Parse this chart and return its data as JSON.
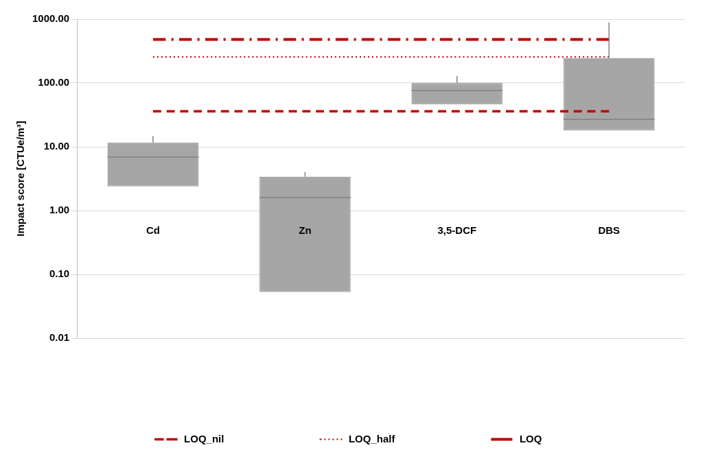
{
  "chart_data": {
    "type": "box",
    "categories": [
      "Cd",
      "Zn",
      "3,5-DCF",
      "DBS"
    ],
    "ylabel": "Impact score [CTUe/m³]",
    "log": "y",
    "ylim": [
      0.01,
      1000
    ],
    "yticks": [
      {
        "value": 0.01,
        "label": "0.01"
      },
      {
        "value": 0.1,
        "label": "0.10"
      },
      {
        "value": 1,
        "label": "1.00"
      },
      {
        "value": 10,
        "label": "10.00"
      },
      {
        "value": 100,
        "label": "100.00"
      },
      {
        "value": 1000,
        "label": "1000.00"
      }
    ],
    "grid": "y",
    "legend": "bottom",
    "series": [
      {
        "color": "#a6a6a6",
        "boxes": [
          {
            "low": 2.4,
            "q1": 2.4,
            "median": 6.9,
            "q3": 11.7,
            "high": 14.8
          },
          {
            "low": 0.053,
            "q1": 0.053,
            "median": 1.6,
            "q3": 3.4,
            "high": 4
          },
          {
            "low": 46,
            "q1": 46,
            "median": 76,
            "q3": 100,
            "high": 129
          },
          {
            "low": 18,
            "q1": 18,
            "median": 27,
            "q3": 247,
            "high": 890
          }
        ]
      },
      {
        "name": "LOQ_nil",
        "type": "line",
        "color": "#c00000",
        "line_style": "dashed",
        "values": [
          36,
          36,
          36,
          36
        ]
      },
      {
        "name": "LOQ_half",
        "type": "line",
        "color": "#c00000",
        "line_style": "dotted",
        "values": [
          257,
          257,
          257,
          257
        ]
      },
      {
        "name": "LOQ",
        "type": "line",
        "color": "#c00000",
        "line_style": "dashdot",
        "values": [
          483,
          483,
          483,
          483
        ]
      }
    ]
  }
}
